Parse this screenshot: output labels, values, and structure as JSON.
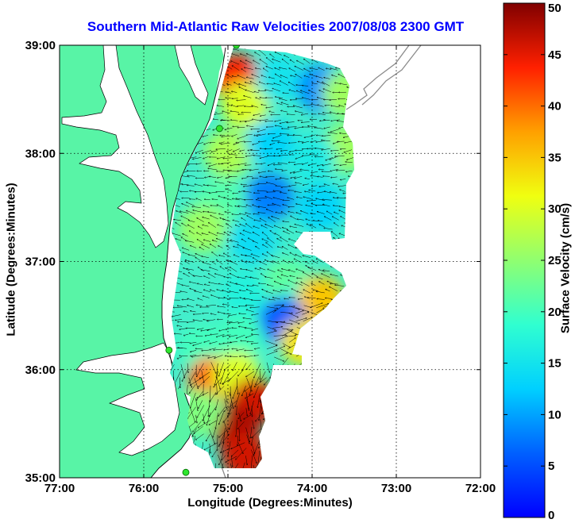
{
  "title": "Southern Mid-Atlantic Raw Velocities 2007/08/08 2300 GMT",
  "x_axis": {
    "label": "Longitude (Degrees:Minutes)",
    "ticks": [
      "77:00",
      "76:00",
      "75:00",
      "74:00",
      "73:00",
      "72:00"
    ],
    "range": [
      -77,
      -72
    ]
  },
  "y_axis": {
    "label": "Latitude (Degrees:Minutes)",
    "ticks": [
      "39:00",
      "38:00",
      "37:00",
      "36:00",
      "35:00"
    ],
    "range": [
      35,
      39
    ]
  },
  "colorbar": {
    "label": "Surface Velocity (cm/s)",
    "range": [
      0,
      50
    ],
    "ticks": [
      "0",
      "5",
      "10",
      "15",
      "20",
      "25",
      "30",
      "35",
      "40",
      "45",
      "50"
    ]
  },
  "colors": {
    "land": "#58f4a6",
    "title": "#0000ff",
    "station": "#2ee62e"
  },
  "map_data": {
    "grid": "dotted",
    "stations": [
      {
        "lon": -74.9,
        "lat": 39.0
      },
      {
        "lon": -75.1,
        "lat": 38.23
      },
      {
        "lon": -75.7,
        "lat": 36.18
      },
      {
        "lon": -75.5,
        "lat": 35.05
      }
    ],
    "velocity_blobs": [
      {
        "lon": -74.9,
        "lat": 38.7,
        "speed": 44
      },
      {
        "lon": -74.8,
        "lat": 38.45,
        "speed": 30
      },
      {
        "lon": -74.4,
        "lat": 38.7,
        "speed": 15
      },
      {
        "lon": -73.9,
        "lat": 38.6,
        "speed": 9
      },
      {
        "lon": -73.6,
        "lat": 38.55,
        "speed": 26
      },
      {
        "lon": -73.6,
        "lat": 38.05,
        "speed": 26
      },
      {
        "lon": -75.0,
        "lat": 38.0,
        "speed": 27
      },
      {
        "lon": -74.5,
        "lat": 38.1,
        "speed": 13
      },
      {
        "lon": -74.0,
        "lat": 37.95,
        "speed": 16
      },
      {
        "lon": -74.5,
        "lat": 37.6,
        "speed": 8
      },
      {
        "lon": -73.9,
        "lat": 37.5,
        "speed": 13
      },
      {
        "lon": -75.1,
        "lat": 37.55,
        "speed": 21
      },
      {
        "lon": -75.3,
        "lat": 37.3,
        "speed": 26
      },
      {
        "lon": -74.7,
        "lat": 37.2,
        "speed": 14
      },
      {
        "lon": -74.3,
        "lat": 36.8,
        "speed": 22
      },
      {
        "lon": -74.8,
        "lat": 36.7,
        "speed": 17
      },
      {
        "lon": -74.1,
        "lat": 36.6,
        "speed": 18
      },
      {
        "lon": -73.9,
        "lat": 36.65,
        "speed": 35
      },
      {
        "lon": -74.35,
        "lat": 36.45,
        "speed": 6
      },
      {
        "lon": -74.1,
        "lat": 36.25,
        "speed": 33
      },
      {
        "lon": -74.85,
        "lat": 36.3,
        "speed": 20
      },
      {
        "lon": -75.3,
        "lat": 36.2,
        "speed": 20
      },
      {
        "lon": -75.2,
        "lat": 35.9,
        "speed": 40
      },
      {
        "lon": -74.9,
        "lat": 35.95,
        "speed": 30
      },
      {
        "lon": -74.7,
        "lat": 35.7,
        "speed": 46
      },
      {
        "lon": -74.9,
        "lat": 35.45,
        "speed": 48
      },
      {
        "lon": -74.8,
        "lat": 35.2,
        "speed": 46
      },
      {
        "lon": -75.35,
        "lat": 35.6,
        "speed": 24
      }
    ]
  }
}
